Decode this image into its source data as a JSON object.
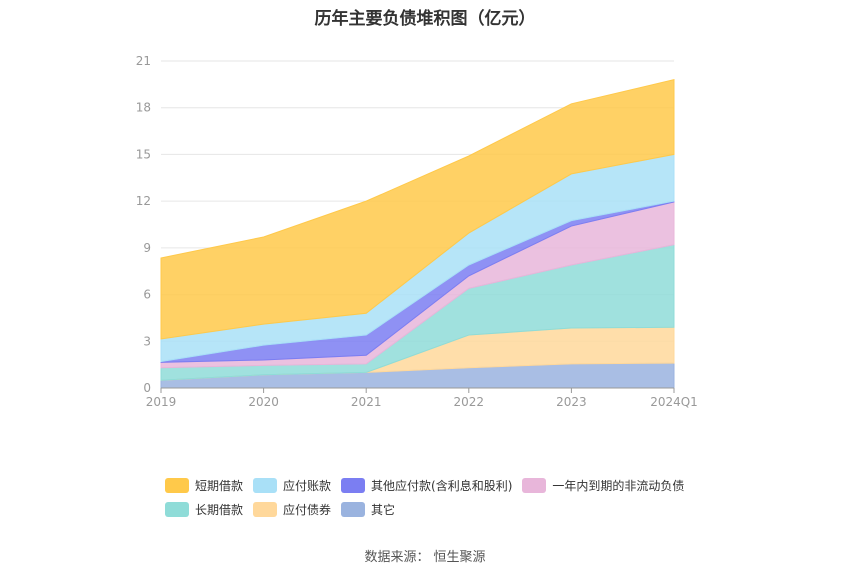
{
  "chart_data": {
    "type": "area",
    "title": "历年主要负债堆积图（亿元）",
    "categories": [
      "2019",
      "2020",
      "2021",
      "2022",
      "2023",
      "2024Q1"
    ],
    "ylim": [
      0,
      21
    ],
    "yticks": [
      0,
      3,
      6,
      9,
      12,
      15,
      18,
      21
    ],
    "grid": true,
    "legend_position": "bottom",
    "stacked": true,
    "series": [
      {
        "name": "其它",
        "color": "#9ab3df",
        "values": [
          0.5,
          0.85,
          1.0,
          1.3,
          1.55,
          1.6
        ]
      },
      {
        "name": "应付债券",
        "color": "#ffd89b",
        "values": [
          0.0,
          0.0,
          0.0,
          2.1,
          2.3,
          2.3
        ]
      },
      {
        "name": "长期借款",
        "color": "#8fdcd8",
        "values": [
          0.8,
          0.6,
          0.55,
          3.0,
          4.05,
          5.3
        ]
      },
      {
        "name": "一年内到期的非流动负债",
        "color": "#e8b6da",
        "values": [
          0.35,
          0.35,
          0.55,
          0.8,
          2.5,
          2.75
        ]
      },
      {
        "name": "其他应付款(含利息和股利)",
        "color": "#7b7ef2",
        "values": [
          0.05,
          0.95,
          1.3,
          0.7,
          0.35,
          0.05
        ]
      },
      {
        "name": "应付账款",
        "color": "#a9e0f7",
        "values": [
          1.45,
          1.35,
          1.4,
          2.05,
          3.0,
          3.0
        ]
      },
      {
        "name": "短期借款",
        "color": "#ffc94a",
        "values": [
          5.2,
          5.6,
          7.2,
          4.95,
          4.5,
          4.8
        ]
      }
    ]
  },
  "legend": {
    "row1": [
      {
        "label": "短期借款",
        "color": "#ffc94a"
      },
      {
        "label": "应付账款",
        "color": "#a9e0f7"
      },
      {
        "label": "其他应付款(含利息和股利)",
        "color": "#7b7ef2"
      },
      {
        "label": "一年内到期的非流动负债",
        "color": "#e8b6da"
      }
    ],
    "row2": [
      {
        "label": "长期借款",
        "color": "#8fdcd8"
      },
      {
        "label": "应付债券",
        "color": "#ffd89b"
      },
      {
        "label": "其它",
        "color": "#9ab3df"
      }
    ]
  },
  "footer": {
    "source_label": "数据来源：",
    "source_value": "恒生聚源"
  }
}
